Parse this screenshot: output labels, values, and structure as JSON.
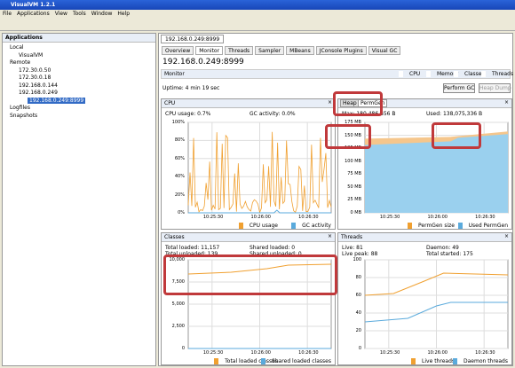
{
  "window": {
    "title": "VisualVM 1.2.1"
  },
  "menu": [
    "File",
    "Applications",
    "View",
    "Tools",
    "Window",
    "Help"
  ],
  "sidebar": {
    "title": "Applications",
    "tree": [
      "Local",
      "VisualVM",
      "Remote",
      "172.30.0.50",
      "172.30.0.18",
      "192.168.0.144",
      "192.168.0.249",
      "192.168.0.249:8999",
      "Logfiles",
      "Snapshots"
    ]
  },
  "tab": "192.168.0.249:8999",
  "subtabs": [
    "Overview",
    "Monitor",
    "Threads",
    "Sampler",
    "MBeans",
    "JConsole Plugins",
    "Visual GC"
  ],
  "heading": "192.168.0.249:8999",
  "monitor": {
    "title": "Monitor",
    "checks": [
      "CPU",
      "Memory",
      "Classes",
      "Threads"
    ],
    "uptime": "Uptime: 4 min 19 sec",
    "buttons": [
      "Perform GC",
      "Heap Dump"
    ]
  },
  "panels": [
    {
      "title": "CPU",
      "stats": [
        "CPU usage: 0.7%",
        "GC activity: 0.0%"
      ],
      "yticks": [
        "100%",
        "80%",
        "60%",
        "40%",
        "20%",
        "0%"
      ],
      "xticks": [
        "10:25:30",
        "10:26:00",
        "10:26:30"
      ],
      "legend": [
        "CPU usage",
        "GC activity"
      ]
    },
    {
      "title": "Heap",
      "tabs": [
        "Heap",
        "PermGen"
      ],
      "stats": [
        "Max: 180,486,656 B",
        "Used: 138,075,336 B"
      ],
      "yticks": [
        "175 MB",
        "150 MB",
        "125 MB",
        "100 MB",
        "75 MB",
        "50 MB",
        "25 MB",
        "0 MB"
      ],
      "xticks": [
        "10:25:30",
        "10:26:00",
        "10:26:30"
      ],
      "legend": [
        "PermGen size",
        "Used PermGen"
      ]
    },
    {
      "title": "Classes",
      "stats": [
        "Total loaded: 11,157",
        "Shared loaded: 0",
        "Total unloaded: 139",
        "Shared unloaded: 0"
      ],
      "yticks": [
        "10,000",
        "7,500",
        "5,000",
        "2,500",
        "0"
      ],
      "xticks": [
        "10:25:30",
        "10:26:00",
        "10:26:30"
      ],
      "legend": [
        "Total loaded classes",
        "Shared loaded classes"
      ]
    },
    {
      "title": "Threads",
      "stats": [
        "Live: 81",
        "Daemon: 49",
        "Live peak: 88",
        "Total started: 175"
      ],
      "yticks": [
        "100",
        "80",
        "60",
        "40",
        "20",
        "0"
      ],
      "xticks": [
        "10:25:30",
        "10:26:00",
        "10:26:30"
      ],
      "legend": [
        "Live threads",
        "Daemon threads"
      ]
    }
  ]
}
